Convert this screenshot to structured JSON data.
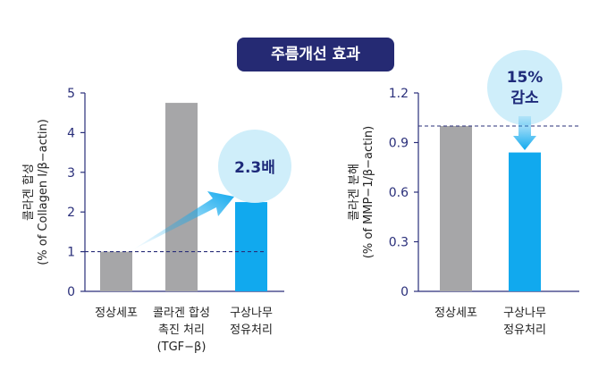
{
  "title": "주름개선 효과",
  "colors": {
    "badge": "#252a73",
    "gray_bar": "#a6a6a8",
    "blue_bar": "#11a9ee",
    "axis": "#2a2f7a",
    "bubble": "#cfeefa"
  },
  "chart_data": [
    {
      "type": "bar",
      "ylabel_lines": [
        "콜라겐 합성",
        "(% of Collagen I/β−actin)"
      ],
      "ylim": [
        0,
        5
      ],
      "yticks": [
        "0",
        "1",
        "2",
        "3",
        "4",
        "5"
      ],
      "categories": [
        [
          "정상세포"
        ],
        [
          "콜라겐 합성",
          "촉진 처리",
          "(TGF−β)"
        ],
        [
          "구상나무",
          "정유처리"
        ]
      ],
      "values": [
        1.0,
        4.75,
        2.25
      ],
      "bar_colors": [
        "gray",
        "gray",
        "blue"
      ],
      "reference_line": 1.0,
      "annotation": "2.3배"
    },
    {
      "type": "bar",
      "ylabel_lines": [
        "콜라겐 분해",
        "(% of MMP−1/β−actin)"
      ],
      "ylim": [
        0,
        1.2
      ],
      "yticks": [
        "0",
        "0.3",
        "0.6",
        "0.9",
        "1.2"
      ],
      "categories": [
        [
          "정상세포"
        ],
        [
          "구상나무",
          "정유처리"
        ]
      ],
      "values": [
        1.0,
        0.84
      ],
      "bar_colors": [
        "gray",
        "blue"
      ],
      "reference_line": 1.0,
      "annotation_lines": [
        "15%",
        "감소"
      ]
    }
  ]
}
